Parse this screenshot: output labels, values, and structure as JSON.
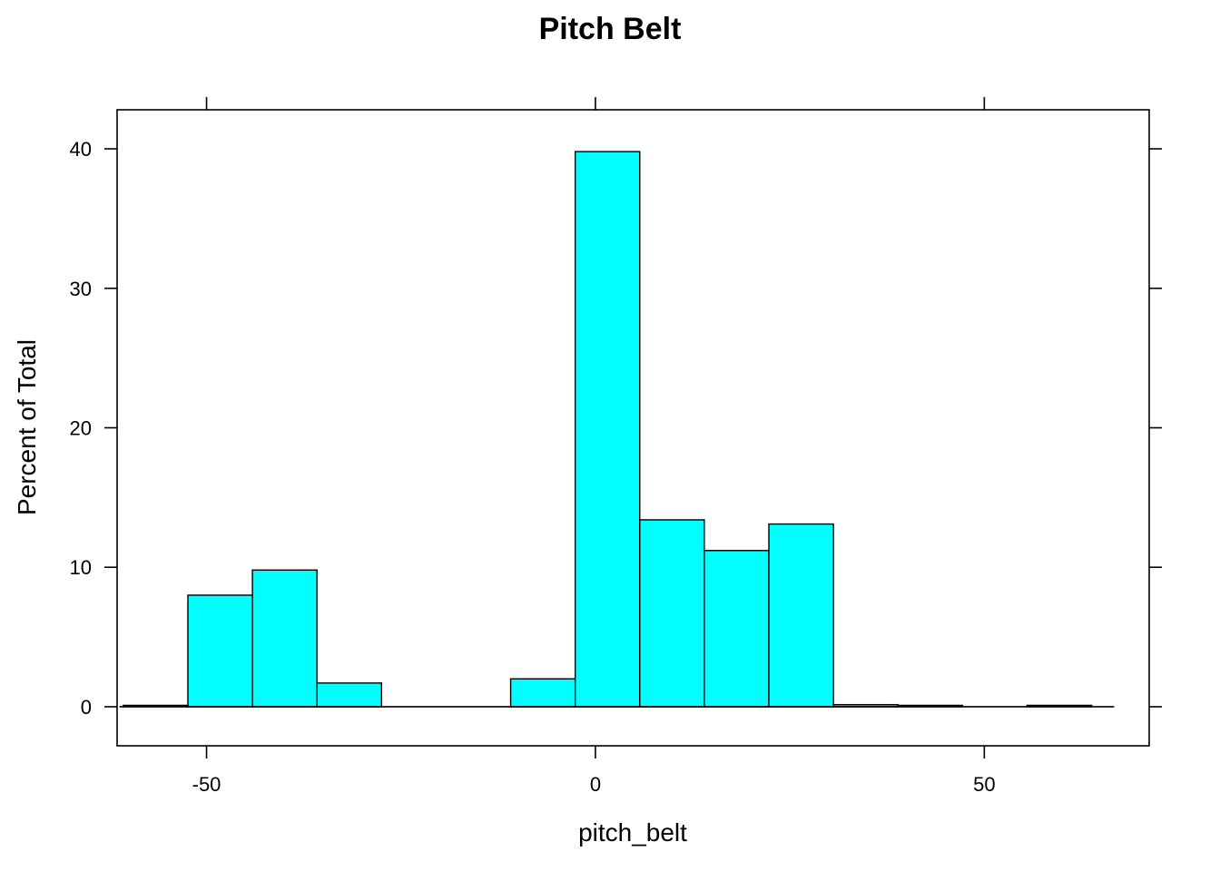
{
  "chart_data": {
    "type": "bar",
    "title": "Pitch Belt",
    "xlabel": "pitch_belt",
    "ylabel": "Percent of Total",
    "xlim": [
      -61.5,
      71.2
    ],
    "ylim": [
      -2.8,
      42.8
    ],
    "x_ticks": [
      -50,
      0,
      50
    ],
    "x_tick_labels": [
      "-50",
      "0",
      "50"
    ],
    "y_ticks": [
      0,
      10,
      20,
      30,
      40
    ],
    "y_tick_labels": [
      "0",
      "10",
      "20",
      "30",
      "40"
    ],
    "bin_width": 8.3,
    "bins": [
      {
        "start": -60.7,
        "end": -52.4,
        "value": 0.1
      },
      {
        "start": -52.4,
        "end": -44.1,
        "value": 8.0
      },
      {
        "start": -44.1,
        "end": -35.8,
        "value": 9.8
      },
      {
        "start": -35.8,
        "end": -27.5,
        "value": 1.7
      },
      {
        "start": -27.5,
        "end": -19.2,
        "value": 0.0
      },
      {
        "start": -19.2,
        "end": -10.9,
        "value": 0.0
      },
      {
        "start": -10.9,
        "end": -2.6,
        "value": 2.0
      },
      {
        "start": -2.6,
        "end": 5.7,
        "value": 39.8
      },
      {
        "start": 5.7,
        "end": 14.0,
        "value": 13.4
      },
      {
        "start": 14.0,
        "end": 22.3,
        "value": 11.2
      },
      {
        "start": 22.3,
        "end": 30.6,
        "value": 13.1
      },
      {
        "start": 30.6,
        "end": 38.9,
        "value": 0.15
      },
      {
        "start": 38.9,
        "end": 47.2,
        "value": 0.1
      },
      {
        "start": 47.2,
        "end": 55.5,
        "value": 0.0
      },
      {
        "start": 55.5,
        "end": 63.8,
        "value": 0.1
      }
    ],
    "baseline_range": [
      -61.2,
      66.7
    ],
    "grid": false,
    "legend": "none",
    "colors": {
      "bar_fill": "#00FFFF",
      "bar_stroke": "#000000"
    }
  }
}
